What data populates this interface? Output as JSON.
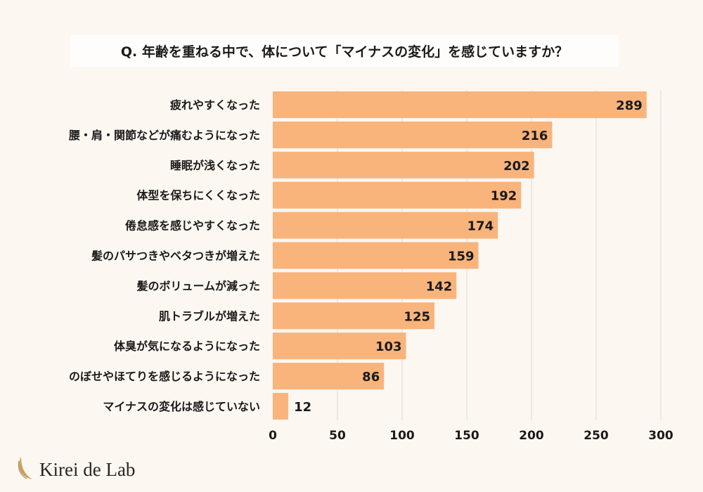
{
  "chart_data": {
    "type": "bar",
    "orientation": "horizontal",
    "title": "Q. 年齢を重ねる中で、体について「マイナスの変化」を感じていますか？",
    "categories": [
      "疲れやすくなった",
      "腰・肩・関節などが痛むようになった",
      "睡眠が浅くなった",
      "体型を保ちにくくなった",
      "倦怠感を感じやすくなった",
      "髪のパサつきやベタつきが増えた",
      "髪のボリュームが減った",
      "肌トラブルが増えた",
      "体臭が気になるようになった",
      "のぼせやほてりを感じるようになった",
      "マイナスの変化は感じていない"
    ],
    "values": [
      289,
      216,
      202,
      192,
      174,
      159,
      142,
      125,
      103,
      86,
      12
    ],
    "xlim": [
      0,
      300
    ],
    "xticks": [
      0,
      50,
      100,
      150,
      200,
      250,
      300
    ],
    "grid": true,
    "data_labels": true,
    "bar_color": "#f9b47c",
    "grid_color": "#e2d8cf"
  },
  "logo": {
    "text": "Kirei de Lab"
  }
}
